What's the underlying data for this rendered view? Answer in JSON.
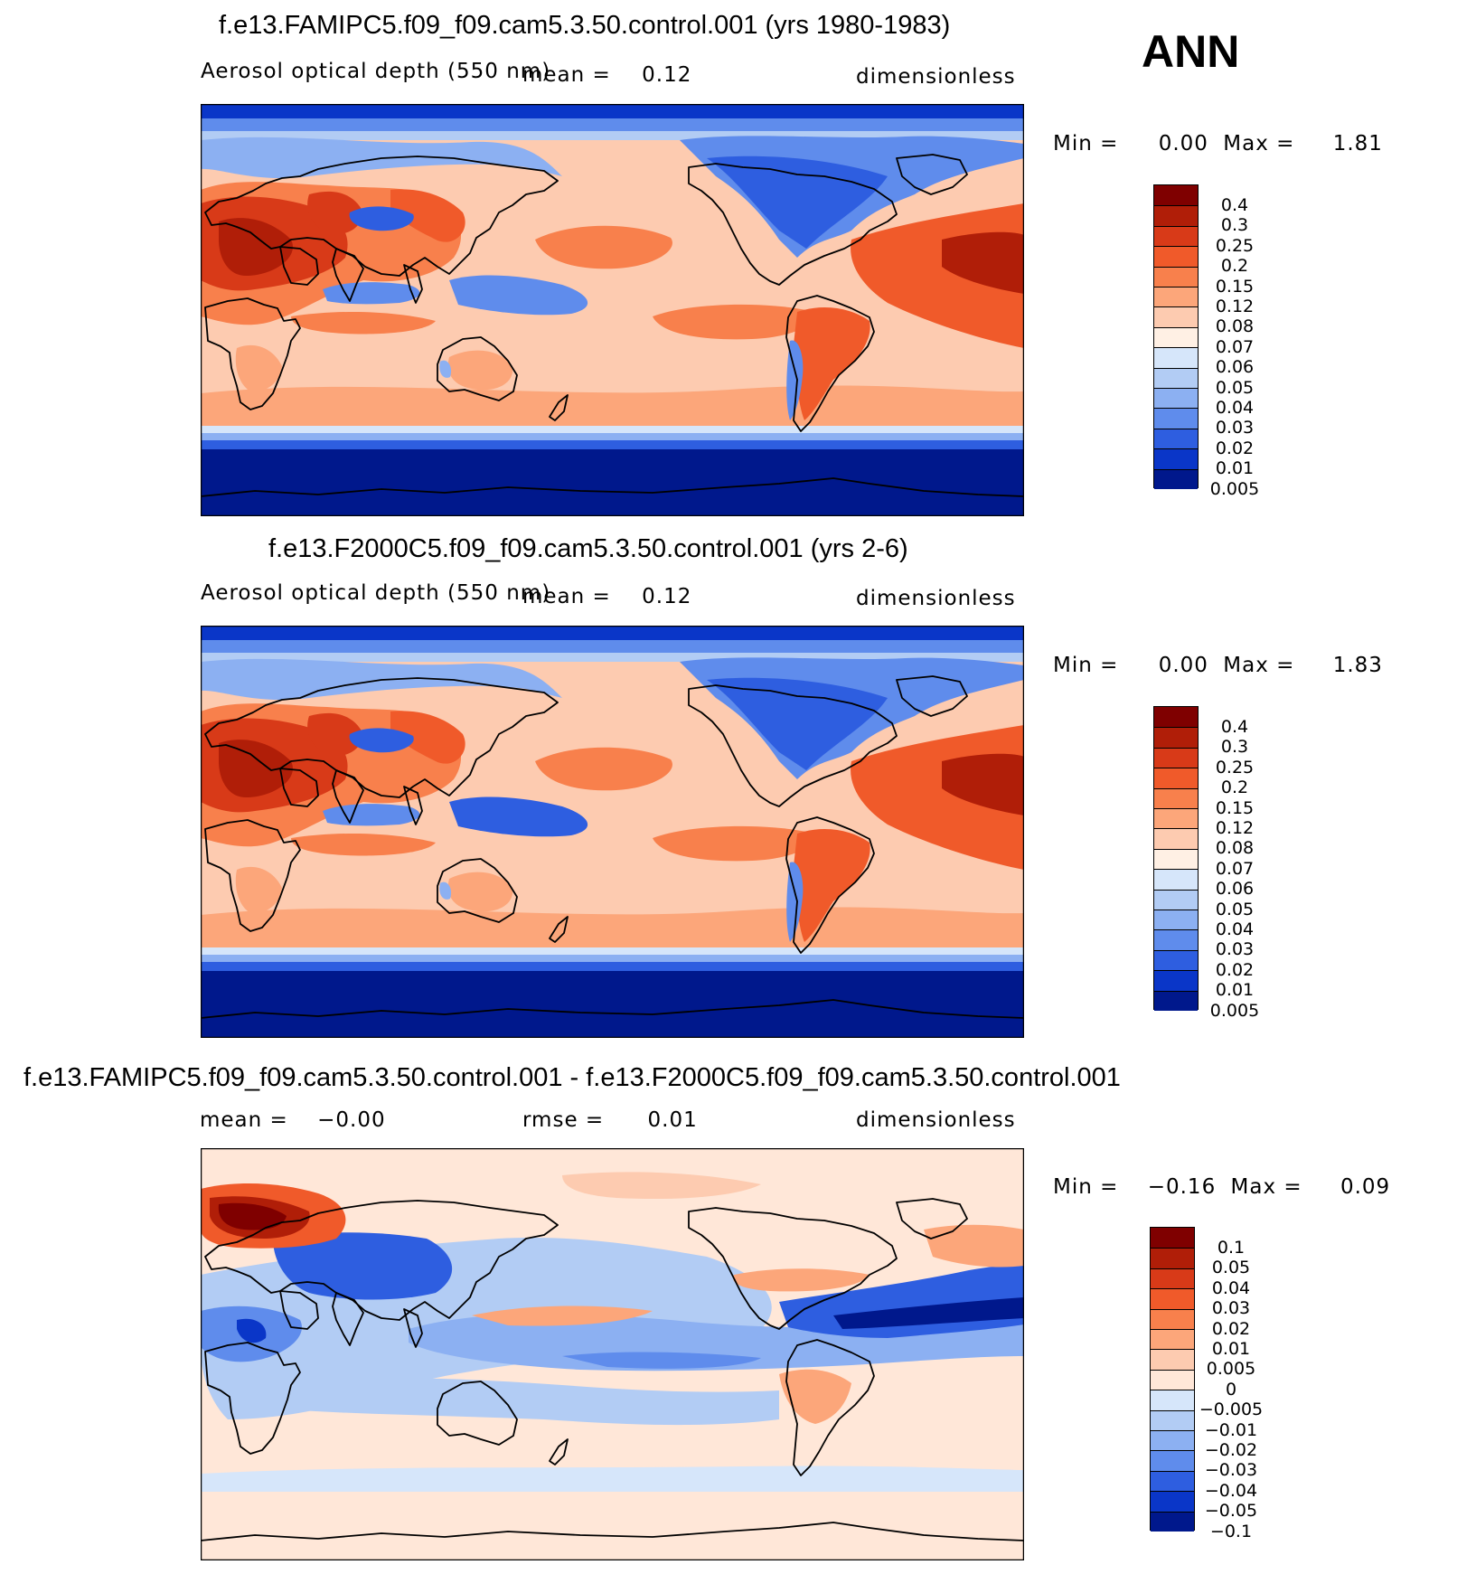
{
  "season": "ANN",
  "panels": [
    {
      "title": "f.e13.FAMIPC5.f09_f09.cam5.3.50.control.001 (yrs 1980-1983)",
      "variable": "Aerosol optical depth (550 nm)",
      "stat1_label": "mean =",
      "stat1_value": "0.12",
      "stat2_label": "",
      "stat2_value": "",
      "units": "dimensionless",
      "min_label": "Min =",
      "min_value": "0.00",
      "max_label": "Max =",
      "max_value": "1.81",
      "colorbar": [
        "0.4",
        "0.3",
        "0.25",
        "0.2",
        "0.15",
        "0.12",
        "0.08",
        "0.07",
        "0.06",
        "0.05",
        "0.04",
        "0.03",
        "0.02",
        "0.01",
        "0.005"
      ]
    },
    {
      "title": "f.e13.F2000C5.f09_f09.cam5.3.50.control.001 (yrs 2-6)",
      "variable": "Aerosol optical depth (550 nm)",
      "stat1_label": "mean =",
      "stat1_value": "0.12",
      "stat2_label": "",
      "stat2_value": "",
      "units": "dimensionless",
      "min_label": "Min =",
      "min_value": "0.00",
      "max_label": "Max =",
      "max_value": "1.83",
      "colorbar": [
        "0.4",
        "0.3",
        "0.25",
        "0.2",
        "0.15",
        "0.12",
        "0.08",
        "0.07",
        "0.06",
        "0.05",
        "0.04",
        "0.03",
        "0.02",
        "0.01",
        "0.005"
      ]
    },
    {
      "title": "f.e13.FAMIPC5.f09_f09.cam5.3.50.control.001 - f.e13.F2000C5.f09_f09.cam5.3.50.control.001",
      "variable": "",
      "stat1_label": "mean =",
      "stat1_value": "−0.00",
      "stat2_label": "rmse =",
      "stat2_value": "0.01",
      "units": "dimensionless",
      "min_label": "Min =",
      "min_value": "−0.16",
      "max_label": "Max =",
      "max_value": "0.09",
      "colorbar": [
        "0.1",
        "0.05",
        "0.04",
        "0.03",
        "0.02",
        "0.01",
        "0.005",
        "0",
        "−0.005",
        "−0.01",
        "−0.02",
        "−0.03",
        "−0.04",
        "−0.05",
        "−0.1"
      ]
    }
  ],
  "colors": {
    "abs_scale": [
      "#7f0000",
      "#b01e08",
      "#d83a18",
      "#f05a2a",
      "#f8804c",
      "#fca67a",
      "#fdcbb0",
      "#fff0e4",
      "#d6e6fa",
      "#b2ccf4",
      "#8cb0f2",
      "#5f8cec",
      "#2e5ee0",
      "#0a36c8",
      "#00188c"
    ],
    "diff_scale": [
      "#7f0000",
      "#b01e08",
      "#d83a18",
      "#f05a2a",
      "#f8804c",
      "#fca67a",
      "#fdcbb0",
      "#ffe7d8",
      "#d6e6fa",
      "#b2ccf4",
      "#8cb0f2",
      "#5f8cec",
      "#2e5ee0",
      "#0a36c8",
      "#00188c"
    ],
    "coastline": "#000000"
  },
  "chart_data": [
    {
      "type": "heatmap",
      "title": "f.e13.FAMIPC5.f09_f09.cam5.3.50.control.001 (yrs 1980-1983)",
      "variable": "Aerosol optical depth (550 nm)",
      "units": "dimensionless",
      "mean": 0.12,
      "min": 0.0,
      "max": 1.81,
      "levels": [
        0.005,
        0.01,
        0.02,
        0.03,
        0.04,
        0.05,
        0.06,
        0.07,
        0.08,
        0.12,
        0.15,
        0.2,
        0.25,
        0.3,
        0.4
      ],
      "projection": "cylindrical equidistant, Pacific-centered (lon 0-360)"
    },
    {
      "type": "heatmap",
      "title": "f.e13.F2000C5.f09_f09.cam5.3.50.control.001 (yrs 2-6)",
      "variable": "Aerosol optical depth (550 nm)",
      "units": "dimensionless",
      "mean": 0.12,
      "min": 0.0,
      "max": 1.83,
      "levels": [
        0.005,
        0.01,
        0.02,
        0.03,
        0.04,
        0.05,
        0.06,
        0.07,
        0.08,
        0.12,
        0.15,
        0.2,
        0.25,
        0.3,
        0.4
      ],
      "projection": "cylindrical equidistant, Pacific-centered (lon 0-360)"
    },
    {
      "type": "heatmap",
      "title": "f.e13.FAMIPC5.f09_f09.cam5.3.50.control.001 - f.e13.F2000C5.f09_f09.cam5.3.50.control.001",
      "units": "dimensionless",
      "mean": -0.0,
      "rmse": 0.01,
      "min": -0.16,
      "max": 0.09,
      "levels": [
        -0.1,
        -0.05,
        -0.04,
        -0.03,
        -0.02,
        -0.01,
        -0.005,
        0,
        0.005,
        0.01,
        0.02,
        0.03,
        0.04,
        0.05,
        0.1
      ],
      "projection": "cylindrical equidistant, Pacific-centered (lon 0-360)"
    }
  ]
}
